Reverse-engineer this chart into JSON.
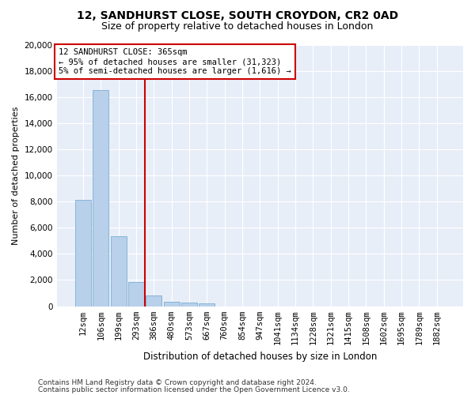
{
  "title_line1": "12, SANDHURST CLOSE, SOUTH CROYDON, CR2 0AD",
  "title_line2": "Size of property relative to detached houses in London",
  "xlabel": "Distribution of detached houses by size in London",
  "ylabel": "Number of detached properties",
  "bar_color": "#b8d0ea",
  "bar_edge_color": "#7aafd4",
  "background_color": "#e8eef8",
  "grid_color": "#ffffff",
  "fig_background": "#ffffff",
  "categories": [
    "12sqm",
    "106sqm",
    "199sqm",
    "293sqm",
    "386sqm",
    "480sqm",
    "573sqm",
    "667sqm",
    "760sqm",
    "854sqm",
    "947sqm",
    "1041sqm",
    "1134sqm",
    "1228sqm",
    "1321sqm",
    "1415sqm",
    "1508sqm",
    "1602sqm",
    "1695sqm",
    "1789sqm",
    "1882sqm"
  ],
  "values": [
    8100,
    16500,
    5350,
    1850,
    800,
    350,
    250,
    200,
    0,
    0,
    0,
    0,
    0,
    0,
    0,
    0,
    0,
    0,
    0,
    0,
    0
  ],
  "vline_x_index": 3.5,
  "vline_color": "#cc0000",
  "annotation_text": "12 SANDHURST CLOSE: 365sqm\n← 95% of detached houses are smaller (31,323)\n5% of semi-detached houses are larger (1,616) →",
  "annotation_box_color": "#ffffff",
  "annotation_box_edge": "#cc0000",
  "ylim": [
    0,
    20000
  ],
  "yticks": [
    0,
    2000,
    4000,
    6000,
    8000,
    10000,
    12000,
    14000,
    16000,
    18000,
    20000
  ],
  "footer_line1": "Contains HM Land Registry data © Crown copyright and database right 2024.",
  "footer_line2": "Contains public sector information licensed under the Open Government Licence v3.0.",
  "title_fontsize": 10,
  "subtitle_fontsize": 9,
  "ylabel_fontsize": 8,
  "xlabel_fontsize": 8.5,
  "tick_fontsize": 7.5,
  "footer_fontsize": 6.5,
  "annot_fontsize": 7.5
}
